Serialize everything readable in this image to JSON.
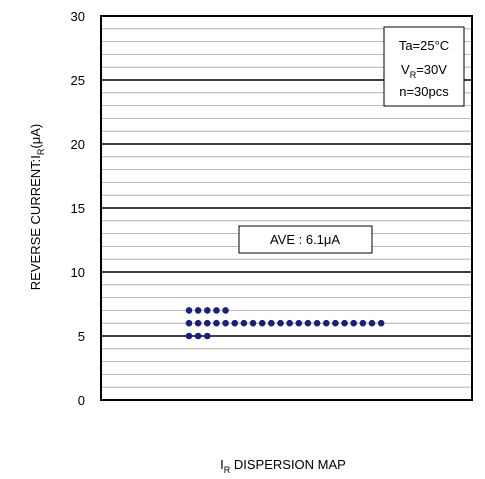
{
  "chart_data": {
    "type": "scatter",
    "ylabel_main": "REVERSE CURRENT:I",
    "ylabel_sub": "R",
    "ylabel_unit": "(μA)",
    "xlabel_main": "I",
    "xlabel_sub": "R",
    "xlabel_rest": " DISPERSION MAP",
    "ylim": [
      0,
      30
    ],
    "yticks": [
      "0",
      "5",
      "10",
      "15",
      "20",
      "25",
      "30"
    ],
    "major_step": 5,
    "minor_step": 1,
    "grid": true,
    "conditions": {
      "line1": "Ta=25°C",
      "line2_main": "V",
      "line2_sub": "R",
      "line2_rest": "=30V",
      "line3": "n=30pcs"
    },
    "average_label": "AVE : 6.1μA",
    "points": {
      "y7": 5,
      "y6": 22,
      "y5": 3
    }
  }
}
